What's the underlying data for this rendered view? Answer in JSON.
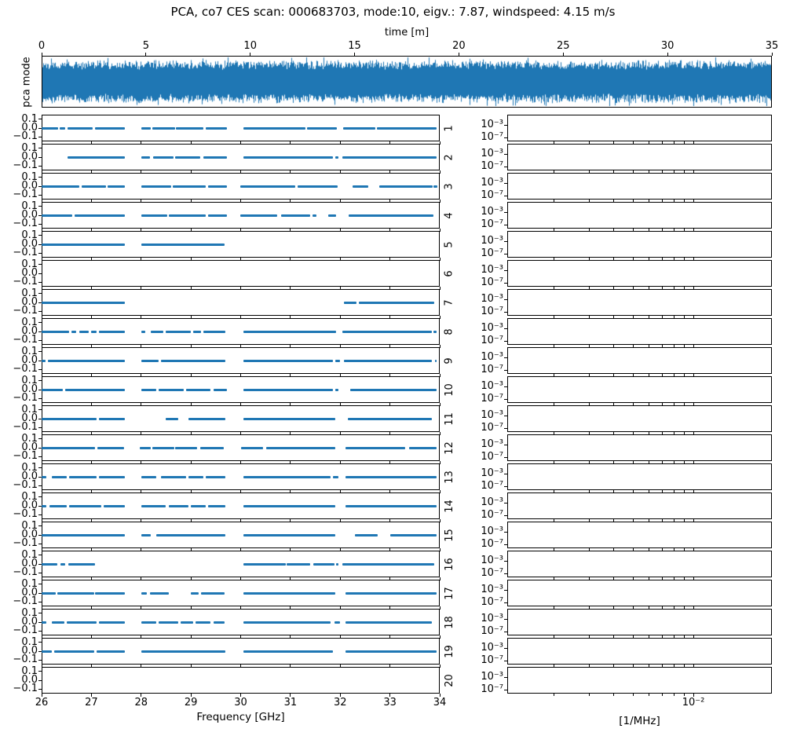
{
  "figure_title": "PCA, co7 CES scan: 000683703, mode:10, eigv.: 7.87, windspeed: 4.15 m/s",
  "colors": {
    "line": "#1f77b4",
    "axes": "#000000",
    "background": "#ffffff"
  },
  "chart_data": [
    {
      "id": "pca-mode-timestream",
      "type": "line",
      "xlabel": "time [m]",
      "ylabel": "pca mode",
      "xlim": [
        0,
        35
      ],
      "xticks": [
        "0",
        "5",
        "10",
        "15",
        "20",
        "25",
        "30",
        "35"
      ],
      "xtick_values": [
        0,
        5,
        10,
        15,
        20,
        25,
        30,
        35
      ],
      "series": [
        {
          "name": "pca mode 10 timestream",
          "description": "dense zero-mean noise band spanning 0-35 minutes, drawn in matplotlib C0 blue, filling ~80% of the axes height with occasional larger spikes"
        }
      ]
    },
    {
      "id": "frequency-mask-grid",
      "type": "line-segments",
      "xlabel": "Frequency [GHz]",
      "xlim": [
        26,
        34
      ],
      "xticks": [
        "26",
        "27",
        "28",
        "29",
        "30",
        "31",
        "32",
        "33",
        "34"
      ],
      "xtick_values": [
        26,
        27,
        28,
        29,
        30,
        31,
        32,
        33,
        34
      ],
      "ylim": [
        -0.15,
        0.15
      ],
      "ytick_values": [
        0.1,
        0.0,
        -0.1
      ],
      "ytick_labels": [
        "0.1",
        "0.0",
        "−0.1"
      ],
      "segment_value": 0.0,
      "rows": [
        {
          "label": "1",
          "segments": [
            [
              26.0,
              26.33
            ],
            [
              26.37,
              26.47
            ],
            [
              26.52,
              27.03
            ],
            [
              27.07,
              27.68
            ],
            [
              28.0,
              28.19
            ],
            [
              28.22,
              28.68
            ],
            [
              28.7,
              29.25
            ],
            [
              29.29,
              29.72
            ],
            [
              30.05,
              31.3
            ],
            [
              31.34,
              31.94
            ],
            [
              32.06,
              32.7
            ],
            [
              32.73,
              33.94
            ]
          ]
        },
        {
          "label": "2",
          "segments": [
            [
              26.52,
              27.68
            ],
            [
              28.0,
              28.17
            ],
            [
              28.24,
              28.65
            ],
            [
              28.69,
              29.19
            ],
            [
              29.25,
              29.72
            ],
            [
              30.05,
              31.86
            ],
            [
              31.9,
              31.97
            ],
            [
              32.04,
              33.94
            ]
          ]
        },
        {
          "label": "3",
          "segments": [
            [
              26.0,
              26.75
            ],
            [
              26.8,
              27.3
            ],
            [
              27.33,
              27.68
            ],
            [
              28.0,
              28.6
            ],
            [
              28.64,
              29.3
            ],
            [
              29.34,
              29.72
            ],
            [
              29.99,
              31.1
            ],
            [
              31.14,
              31.95
            ],
            [
              32.25,
              32.57
            ],
            [
              32.79,
              33.86
            ],
            [
              33.88,
              33.95
            ]
          ]
        },
        {
          "label": "4",
          "segments": [
            [
              26.0,
              26.62
            ],
            [
              26.66,
              27.68
            ],
            [
              28.0,
              28.52
            ],
            [
              28.56,
              29.3
            ],
            [
              29.34,
              29.72
            ],
            [
              29.99,
              30.73
            ],
            [
              30.81,
              31.4
            ],
            [
              31.44,
              31.52
            ],
            [
              31.76,
              31.92
            ],
            [
              32.17,
              33.88
            ]
          ]
        },
        {
          "label": "5",
          "segments": [
            [
              26.0,
              27.68
            ],
            [
              28.0,
              29.68
            ]
          ]
        },
        {
          "label": "6",
          "segments": []
        },
        {
          "label": "7",
          "segments": [
            [
              26.0,
              27.68
            ],
            [
              32.08,
              32.32
            ],
            [
              32.37,
              33.89
            ]
          ]
        },
        {
          "label": "8",
          "segments": [
            [
              26.0,
              26.55
            ],
            [
              26.6,
              26.7
            ],
            [
              26.75,
              26.95
            ],
            [
              27.0,
              27.1
            ],
            [
              27.15,
              27.68
            ],
            [
              28.0,
              28.08
            ],
            [
              28.2,
              28.45
            ],
            [
              28.5,
              29.0
            ],
            [
              29.05,
              29.2
            ],
            [
              29.25,
              29.7
            ],
            [
              30.05,
              31.92
            ],
            [
              32.05,
              33.85
            ],
            [
              33.88,
              33.94
            ]
          ]
        },
        {
          "label": "9",
          "segments": [
            [
              26.0,
              26.08
            ],
            [
              26.12,
              27.68
            ],
            [
              28.0,
              28.35
            ],
            [
              28.4,
              29.7
            ],
            [
              30.05,
              31.85
            ],
            [
              31.9,
              32.0
            ],
            [
              32.08,
              33.85
            ],
            [
              33.9,
              33.94
            ]
          ]
        },
        {
          "label": "10",
          "segments": [
            [
              26.0,
              26.42
            ],
            [
              26.48,
              27.68
            ],
            [
              28.0,
              28.3
            ],
            [
              28.35,
              28.85
            ],
            [
              28.9,
              29.4
            ],
            [
              29.45,
              29.72
            ],
            [
              30.05,
              31.85
            ],
            [
              31.9,
              31.97
            ],
            [
              32.2,
              33.94
            ]
          ]
        },
        {
          "label": "11",
          "segments": [
            [
              26.0,
              27.1
            ],
            [
              27.15,
              27.68
            ],
            [
              28.5,
              28.75
            ],
            [
              28.95,
              29.7
            ],
            [
              30.05,
              31.9
            ],
            [
              32.15,
              33.85
            ]
          ]
        },
        {
          "label": "12",
          "segments": [
            [
              26.0,
              27.07
            ],
            [
              27.12,
              27.66
            ],
            [
              27.98,
              28.19
            ],
            [
              28.23,
              28.66
            ],
            [
              28.69,
              29.13
            ],
            [
              29.18,
              29.66
            ],
            [
              30.0,
              30.45
            ],
            [
              30.52,
              31.9
            ],
            [
              32.1,
              33.3
            ],
            [
              33.38,
              33.94
            ]
          ]
        },
        {
          "label": "13",
          "segments": [
            [
              26.0,
              26.1
            ],
            [
              26.2,
              26.5
            ],
            [
              26.55,
              27.1
            ],
            [
              27.15,
              27.68
            ],
            [
              28.0,
              28.3
            ],
            [
              28.4,
              28.9
            ],
            [
              28.95,
              29.25
            ],
            [
              29.3,
              29.7
            ],
            [
              30.05,
              31.8
            ],
            [
              31.85,
              31.97
            ],
            [
              32.1,
              33.94
            ]
          ]
        },
        {
          "label": "14",
          "segments": [
            [
              26.0,
              26.1
            ],
            [
              26.15,
              26.5
            ],
            [
              26.55,
              27.2
            ],
            [
              27.25,
              27.68
            ],
            [
              28.0,
              28.5
            ],
            [
              28.55,
              28.95
            ],
            [
              29.0,
              29.3
            ],
            [
              29.35,
              29.7
            ],
            [
              30.05,
              31.9
            ],
            [
              32.1,
              33.94
            ]
          ]
        },
        {
          "label": "15",
          "segments": [
            [
              26.0,
              27.68
            ],
            [
              28.0,
              28.2
            ],
            [
              28.3,
              29.7
            ],
            [
              30.05,
              31.9
            ],
            [
              32.3,
              32.75
            ],
            [
              33.0,
              33.94
            ]
          ]
        },
        {
          "label": "16",
          "segments": [
            [
              26.0,
              26.31
            ],
            [
              26.38,
              26.47
            ],
            [
              26.54,
              27.08
            ],
            [
              30.05,
              30.9
            ],
            [
              30.93,
              31.4
            ],
            [
              31.46,
              31.88
            ],
            [
              31.92,
              31.97
            ],
            [
              32.05,
              33.89
            ]
          ]
        },
        {
          "label": "17",
          "segments": [
            [
              26.0,
              26.28
            ],
            [
              26.32,
              27.05
            ],
            [
              27.08,
              27.68
            ],
            [
              28.0,
              28.12
            ],
            [
              28.18,
              28.55
            ],
            [
              29.0,
              29.15
            ],
            [
              29.2,
              29.68
            ],
            [
              30.05,
              31.9
            ],
            [
              32.1,
              33.94
            ]
          ]
        },
        {
          "label": "18",
          "segments": [
            [
              26.0,
              26.1
            ],
            [
              26.2,
              26.45
            ],
            [
              26.5,
              27.1
            ],
            [
              27.15,
              27.68
            ],
            [
              28.0,
              28.3
            ],
            [
              28.35,
              28.75
            ],
            [
              28.8,
              29.05
            ],
            [
              29.1,
              29.4
            ],
            [
              29.45,
              29.68
            ],
            [
              30.05,
              31.8
            ],
            [
              31.88,
              32.0
            ],
            [
              32.1,
              33.85
            ]
          ]
        },
        {
          "label": "19",
          "segments": [
            [
              26.0,
              26.2
            ],
            [
              26.25,
              27.05
            ],
            [
              27.1,
              27.68
            ],
            [
              28.0,
              29.7
            ],
            [
              30.05,
              31.85
            ],
            [
              32.1,
              33.94
            ]
          ]
        },
        {
          "label": "20",
          "segments": []
        }
      ]
    },
    {
      "id": "power-spectrum-grid",
      "type": "line",
      "xlabel": "[1/MHz]",
      "xscale": "log",
      "xlim": [
        0.00117,
        0.0247
      ],
      "xtick_values": [
        0.01
      ],
      "xtick_labels": [
        "10⁻²"
      ],
      "xticks_minor": [
        0.002,
        0.003,
        0.004,
        0.005,
        0.006,
        0.007,
        0.008,
        0.009
      ],
      "ytick_labels": [
        "10⁻³",
        "10⁻⁷"
      ],
      "n_rows": 20,
      "rows_empty": true,
      "description": "20 stacked log-log power spectrum panels, all without plotted data"
    }
  ]
}
